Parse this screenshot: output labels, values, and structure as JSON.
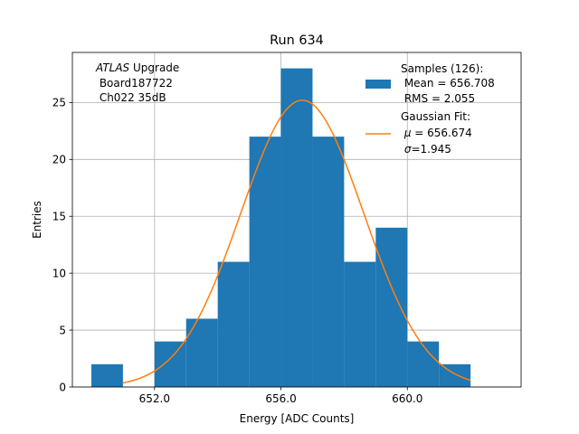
{
  "chart_data": {
    "type": "bar",
    "title": "Run 634",
    "xlabel": "Energy [ADC Counts]",
    "ylabel": "Entries",
    "xlim": [
      649.4,
      663.6
    ],
    "ylim": [
      0,
      29.4
    ],
    "grid": true,
    "x_ticks": [
      {
        "value": 652,
        "label": "652.0"
      },
      {
        "value": 656,
        "label": "656.0"
      },
      {
        "value": 660,
        "label": "660.0"
      }
    ],
    "y_ticks": [
      {
        "value": 0,
        "label": "0"
      },
      {
        "value": 5,
        "label": "5"
      },
      {
        "value": 10,
        "label": "10"
      },
      {
        "value": 15,
        "label": "15"
      },
      {
        "value": 20,
        "label": "20"
      },
      {
        "value": 25,
        "label": "25"
      }
    ],
    "histogram": {
      "bin_edges": [
        650,
        651,
        652,
        653,
        654,
        655,
        656,
        657,
        658,
        659,
        660,
        661,
        662
      ],
      "counts": [
        2,
        0,
        4,
        6,
        11,
        22,
        28,
        22,
        11,
        14,
        4,
        2
      ],
      "color": "#1f77b4"
    },
    "fit": {
      "mu": 656.674,
      "sigma": 1.945,
      "amplitude": 25.2,
      "x_range": [
        651,
        662
      ],
      "color": "#ff7f0e"
    },
    "annotation": {
      "prefix": "ATLAS",
      "line1_rest": " Upgrade",
      "line2": " Board187722",
      "line3": " Ch022 35dB"
    },
    "legend": {
      "placement": "top-right",
      "samples": {
        "label": "Samples (126):",
        "mean": " Mean = 656.708",
        "rms": " RMS = 2.055"
      },
      "fit": {
        "label": "Gaussian Fit:",
        "mu_symbol": "μ",
        "mu_value": " = 656.674",
        "sigma_symbol": "σ",
        "sigma_value": "=1.945"
      }
    }
  }
}
